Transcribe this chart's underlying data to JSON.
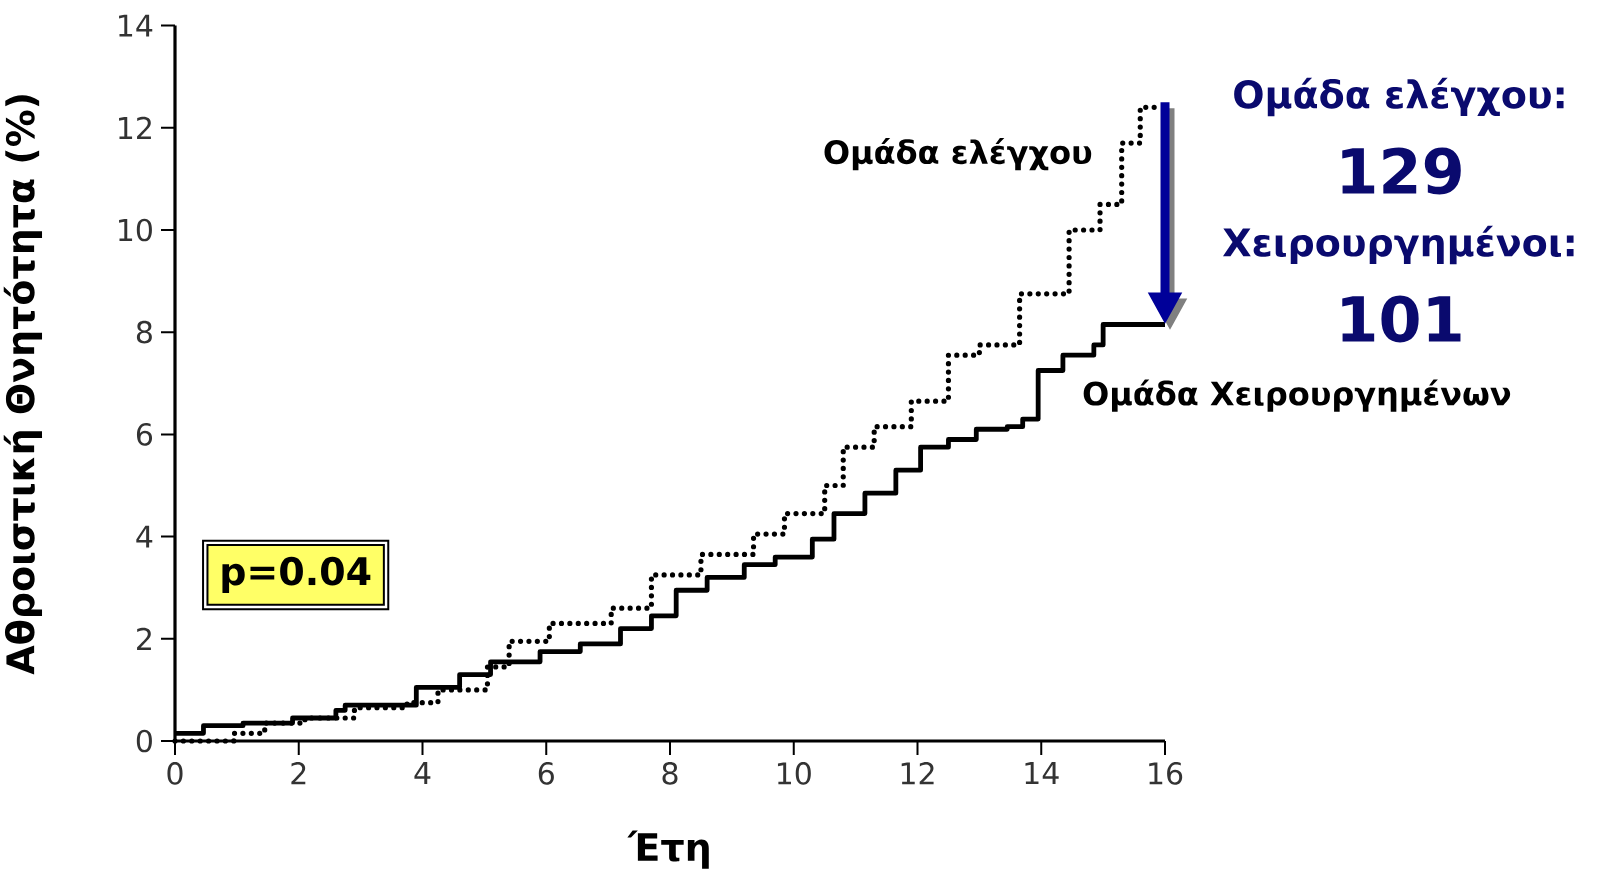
{
  "chart_data": {
    "type": "step",
    "xlabel": "Έτη",
    "ylabel": "Αθροιστική Θνητότητα (%)",
    "xlim": [
      0,
      16
    ],
    "ylim": [
      0,
      14
    ],
    "xticks": [
      0,
      2,
      4,
      6,
      8,
      10,
      12,
      14,
      16
    ],
    "yticks": [
      0,
      2,
      4,
      6,
      8,
      10,
      12,
      14
    ],
    "grid": false,
    "legend": false,
    "marker": "none",
    "series": [
      {
        "name": "Ομάδα ελέγχου",
        "color": "#000000",
        "line_style": "dotted",
        "x": [
          0,
          0.95,
          1.45,
          2.1,
          2.9,
          3.75,
          4.25,
          5.05,
          5.4,
          6.05,
          7.05,
          7.7,
          8.5,
          9.35,
          9.85,
          10.5,
          10.8,
          11.3,
          11.9,
          12.5,
          13.0,
          13.65,
          14.45,
          14.95,
          15.3,
          15.6,
          15.85
        ],
        "values": [
          0,
          0.15,
          0.35,
          0.45,
          0.65,
          0.75,
          1.0,
          1.45,
          1.95,
          2.3,
          2.6,
          3.25,
          3.65,
          4.05,
          4.45,
          5.0,
          5.75,
          6.15,
          6.65,
          7.55,
          7.75,
          8.75,
          10.0,
          10.5,
          11.7,
          12.4,
          12.5
        ]
      },
      {
        "name": "Ομάδα Χειρουργημένων",
        "color": "#000000",
        "line_style": "solid",
        "x": [
          0,
          0.46,
          1.1,
          1.9,
          2.6,
          2.75,
          3.6,
          3.9,
          4.6,
          5.1,
          5.9,
          6.55,
          7.2,
          7.7,
          8.1,
          8.6,
          9.2,
          9.7,
          10.3,
          10.65,
          11.15,
          11.65,
          12.05,
          12.5,
          12.95,
          13.45,
          13.7,
          13.95,
          14.35,
          14.85,
          15.0,
          16
        ],
        "values": [
          0.15,
          0.3,
          0.35,
          0.45,
          0.6,
          0.7,
          0.7,
          1.05,
          1.3,
          1.55,
          1.75,
          1.9,
          2.2,
          2.45,
          2.95,
          3.2,
          3.45,
          3.6,
          3.95,
          4.45,
          4.85,
          5.3,
          5.75,
          5.9,
          6.1,
          6.15,
          6.3,
          7.25,
          7.55,
          7.75,
          8.15,
          8.15
        ]
      }
    ],
    "annotations": [
      "p=0.04",
      "Ομάδα ελέγχου:",
      "129",
      "Χειρουργημένοι:",
      "101"
    ]
  }
}
